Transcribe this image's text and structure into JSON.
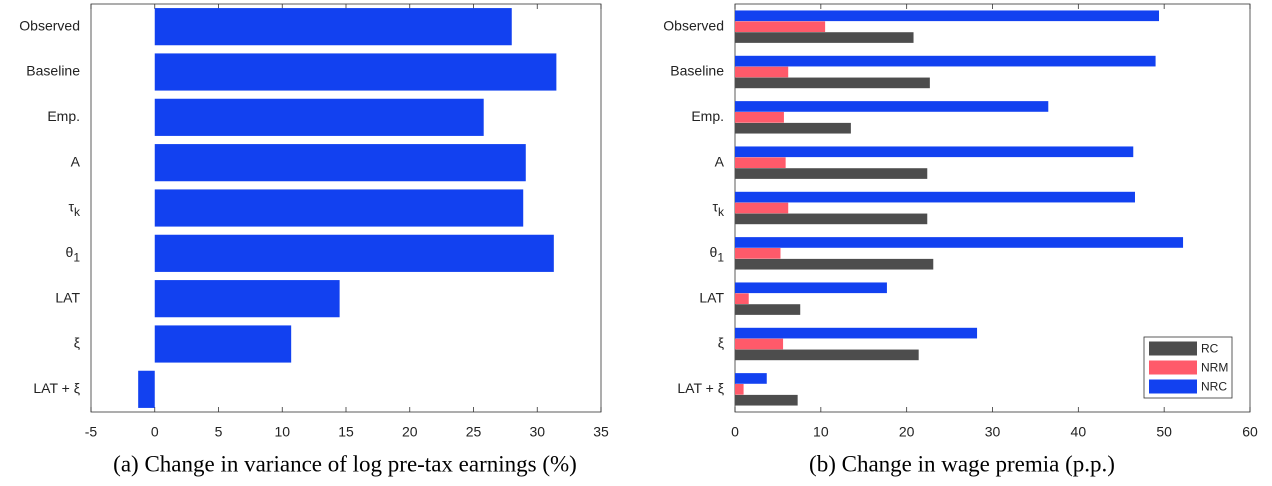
{
  "chart_data": [
    {
      "type": "hbar",
      "caption": "(a) Change in variance of log pre-tax earnings (%)",
      "categories": [
        "Observed",
        "Baseline",
        "Emp.",
        "A",
        "τk",
        "θ1",
        "LAT",
        "ξ",
        "LAT + ξ"
      ],
      "values": [
        28.0,
        31.5,
        25.8,
        29.1,
        28.9,
        31.3,
        14.5,
        10.7,
        -1.3
      ],
      "color": "#1241f0",
      "xlim": [
        -5,
        35
      ],
      "xticks": [
        -5,
        0,
        5,
        10,
        15,
        20,
        25,
        30,
        35
      ]
    },
    {
      "type": "grouped_hbar",
      "caption": "(b) Change in wage premia (p.p.)",
      "categories": [
        "Observed",
        "Baseline",
        "Emp.",
        "A",
        "τk",
        "θ1",
        "LAT",
        "ξ",
        "LAT + ξ"
      ],
      "series": [
        {
          "name": "RC",
          "color": "#4d4d4d",
          "values": [
            20.8,
            22.7,
            13.5,
            22.4,
            22.4,
            23.1,
            7.6,
            21.4,
            7.3
          ]
        },
        {
          "name": "NRM",
          "color": "#ff5a6a",
          "values": [
            10.5,
            6.2,
            5.7,
            5.9,
            6.2,
            5.3,
            1.6,
            5.6,
            1.0
          ]
        },
        {
          "name": "NRC",
          "color": "#1241f0",
          "values": [
            49.4,
            49.0,
            36.5,
            46.4,
            46.6,
            52.2,
            17.7,
            28.2,
            3.7
          ]
        }
      ],
      "xlim": [
        0,
        60
      ],
      "xticks": [
        0,
        10,
        20,
        30,
        40,
        50,
        60
      ],
      "legend": "lower right"
    }
  ]
}
